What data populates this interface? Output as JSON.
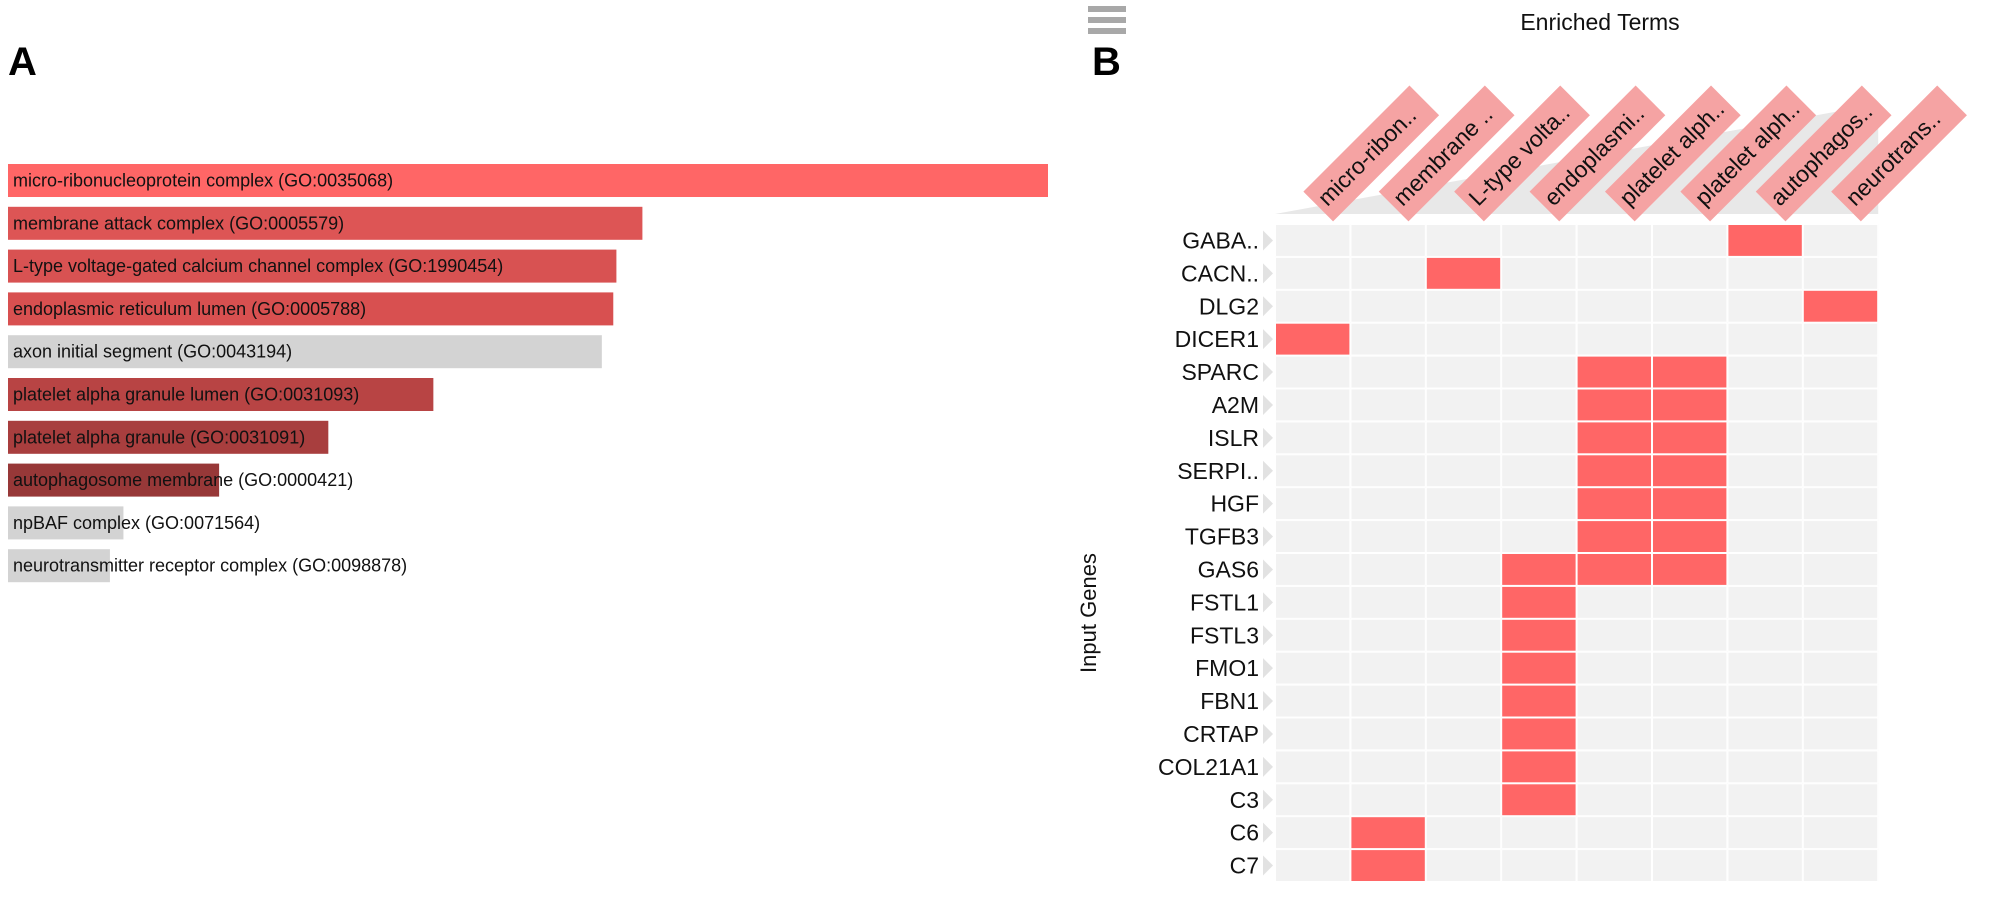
{
  "panels": {
    "a_label": "A",
    "b_label": "B"
  },
  "chart_data": [
    {
      "type": "bar",
      "orientation": "horizontal",
      "categories": [
        "micro-ribonucleoprotein complex (GO:0035068)",
        "membrane attack complex (GO:0005579)",
        "L-type voltage-gated calcium channel complex (GO:1990454)",
        "endoplasmic reticulum lumen (GO:0005788)",
        "axon initial segment (GO:0043194)",
        "platelet alpha granule lumen (GO:0031093)",
        "platelet alpha granule (GO:0031091)",
        "autophagosome membrane (GO:0000421)",
        "npBAF complex (GO:0071564)",
        "neurotransmitter receptor complex (GO:0098878)"
      ],
      "values": [
        100,
        61,
        58.5,
        58.2,
        57.1,
        40.9,
        30.8,
        20.3,
        11.1,
        9.8
      ],
      "bar_colors": [
        "#ff6666",
        "#dd5555",
        "#d85252",
        "#d85050",
        "#d3d3d3",
        "#b84444",
        "#a83e3e",
        "#973838",
        "#d3d3d3",
        "#d3d3d3"
      ],
      "xlim": [
        0,
        100
      ]
    },
    {
      "type": "heatmap",
      "title": "Enriched Terms",
      "ylabel": "Input Genes",
      "columns": [
        "micro-ribon..",
        "membrane ..",
        "L-type volta..",
        "endoplasmi..",
        "platelet alph..",
        "platelet alph..",
        "autophagos..",
        "neurotrans.."
      ],
      "rows": [
        "GABA..",
        "CACN..",
        "DLG2",
        "DICER1",
        "SPARC",
        "A2M",
        "ISLR",
        "SERPI..",
        "HGF",
        "TGFB3",
        "GAS6",
        "FSTL1",
        "FSTL3",
        "FMO1",
        "FBN1",
        "CRTAP",
        "COL21A1",
        "C3",
        "C6",
        "C7"
      ],
      "matrix": [
        [
          0,
          0,
          0,
          0,
          0,
          0,
          1,
          0
        ],
        [
          0,
          0,
          1,
          0,
          0,
          0,
          0,
          0
        ],
        [
          0,
          0,
          0,
          0,
          0,
          0,
          0,
          1
        ],
        [
          1,
          0,
          0,
          0,
          0,
          0,
          0,
          0
        ],
        [
          0,
          0,
          0,
          0,
          1,
          1,
          0,
          0
        ],
        [
          0,
          0,
          0,
          0,
          1,
          1,
          0,
          0
        ],
        [
          0,
          0,
          0,
          0,
          1,
          1,
          0,
          0
        ],
        [
          0,
          0,
          0,
          0,
          1,
          1,
          0,
          0
        ],
        [
          0,
          0,
          0,
          0,
          1,
          1,
          0,
          0
        ],
        [
          0,
          0,
          0,
          0,
          1,
          1,
          0,
          0
        ],
        [
          0,
          0,
          0,
          1,
          1,
          1,
          0,
          0
        ],
        [
          0,
          0,
          0,
          1,
          0,
          0,
          0,
          0
        ],
        [
          0,
          0,
          0,
          1,
          0,
          0,
          0,
          0
        ],
        [
          0,
          0,
          0,
          1,
          0,
          0,
          0,
          0
        ],
        [
          0,
          0,
          0,
          1,
          0,
          0,
          0,
          0
        ],
        [
          0,
          0,
          0,
          1,
          0,
          0,
          0,
          0
        ],
        [
          0,
          0,
          0,
          1,
          0,
          0,
          0,
          0
        ],
        [
          0,
          0,
          0,
          1,
          0,
          0,
          0,
          0
        ],
        [
          0,
          1,
          0,
          0,
          0,
          0,
          0,
          0
        ],
        [
          0,
          1,
          0,
          0,
          0,
          0,
          0,
          0
        ]
      ],
      "colors": {
        "active": "#ff6666",
        "inactive": "#f2f2f2",
        "header_bg": "#f5a3a3",
        "triangle": "#e8e8e8"
      },
      "menu_icon": "hamburger-menu-icon"
    }
  ]
}
